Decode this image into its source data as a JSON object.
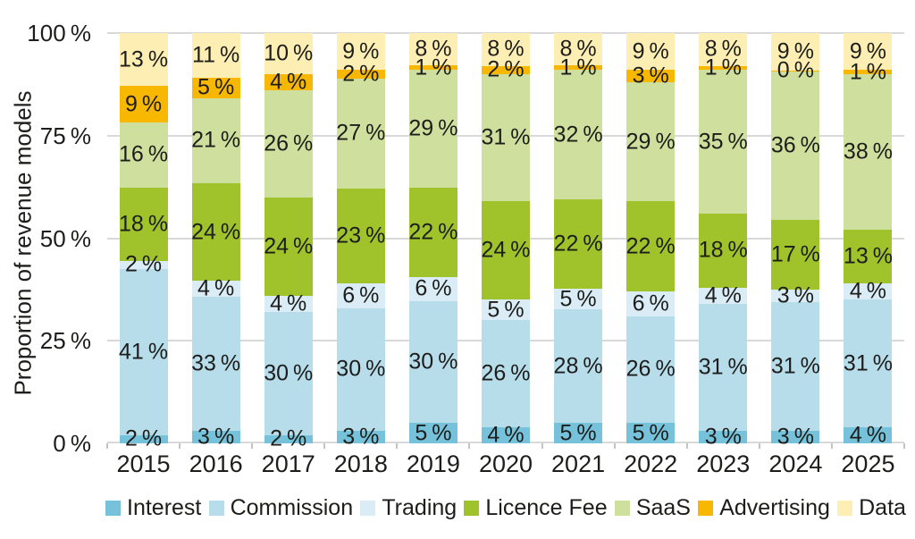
{
  "page": {
    "background": "#ffffff",
    "text_color": "#1d1d1b",
    "grid_color": "#d9d9d9",
    "tick_color": "#c4c4c4"
  },
  "chart_data": {
    "type": "bar",
    "stacked": true,
    "title": "",
    "xlabel": "",
    "ylabel": "Proportion of revenue models",
    "ylim": [
      0,
      100
    ],
    "grid": true,
    "legend_position": "bottom",
    "value_suffix": " %",
    "categories": [
      "2015",
      "2016",
      "2017",
      "2018",
      "2019",
      "2020",
      "2021",
      "2022",
      "2023",
      "2024",
      "2025"
    ],
    "series": [
      {
        "name": "Interest",
        "color": "#76c2da",
        "values": [
          2,
          3,
          2,
          3,
          5,
          4,
          5,
          5,
          3,
          3,
          4
        ]
      },
      {
        "name": "Commission",
        "color": "#b7dcea",
        "values": [
          41,
          33,
          30,
          30,
          30,
          26,
          28,
          26,
          31,
          31,
          31
        ]
      },
      {
        "name": "Trading",
        "color": "#daecf5",
        "values": [
          2,
          4,
          4,
          6,
          6,
          5,
          5,
          6,
          4,
          3,
          4
        ]
      },
      {
        "name": "Licence Fee",
        "color": "#a0c32c",
        "values": [
          18,
          24,
          24,
          23,
          22,
          24,
          22,
          22,
          18,
          17,
          13
        ]
      },
      {
        "name": "SaaS",
        "color": "#cfe09e",
        "values": [
          16,
          21,
          26,
          27,
          29,
          31,
          32,
          29,
          35,
          36,
          38
        ]
      },
      {
        "name": "Advertising",
        "color": "#f8b700",
        "values": [
          9,
          5,
          4,
          2,
          1,
          2,
          1,
          3,
          1,
          0,
          1
        ]
      },
      {
        "name": "Data",
        "color": "#fdeeb4",
        "values": [
          13,
          11,
          10,
          9,
          8,
          8,
          8,
          9,
          8,
          9,
          9
        ]
      }
    ],
    "ytick_values": [
      0,
      25,
      50,
      75,
      100
    ],
    "ytick_labels": [
      "0 %",
      "25 %",
      "50 %",
      "75 %",
      "100 %"
    ]
  }
}
